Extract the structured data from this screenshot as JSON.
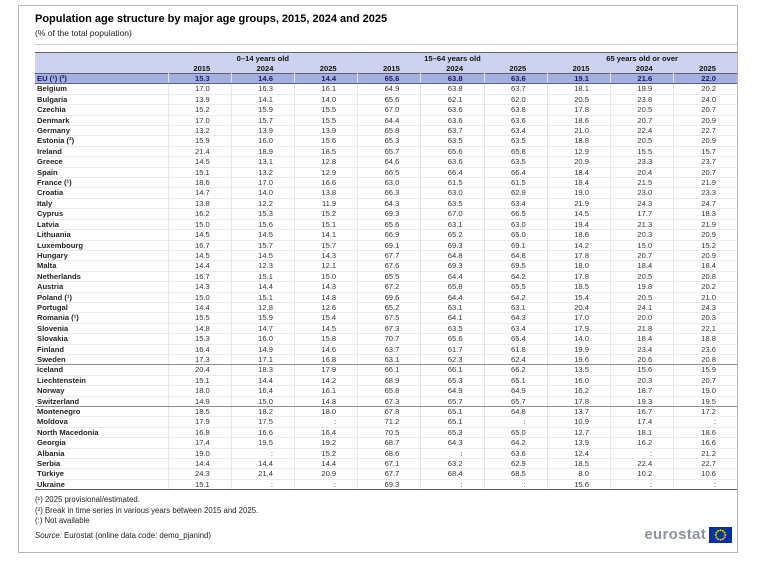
{
  "title": "Population age structure by major age groups, 2015, 2024 and 2025",
  "subtitle": "(% of the total population)",
  "table": {
    "groups": [
      "0–14 years old",
      "15–64 years old",
      "65 years old or over"
    ],
    "years": [
      "2015",
      "2024",
      "2025"
    ],
    "not_available_symbol": ":",
    "rows": [
      {
        "name": "EU (¹) (²)",
        "style": "eu",
        "values": [
          "15.3",
          "14.6",
          "14.4",
          "65.6",
          "63.8",
          "63.6",
          "19.1",
          "21.6",
          "22.0"
        ]
      },
      {
        "name": "Belgium",
        "values": [
          "17.0",
          "16.3",
          "16.1",
          "64.9",
          "63.8",
          "63.7",
          "18.1",
          "19.9",
          "20.2"
        ]
      },
      {
        "name": "Bulgaria",
        "values": [
          "13.9",
          "14.1",
          "14.0",
          "65.6",
          "62.1",
          "62.0",
          "20.5",
          "23.8",
          "24.0"
        ]
      },
      {
        "name": "Czechia",
        "values": [
          "15.2",
          "15.9",
          "15.5",
          "67.0",
          "63.6",
          "63.8",
          "17.8",
          "20.5",
          "20.7"
        ]
      },
      {
        "name": "Denmark",
        "values": [
          "17.0",
          "15.7",
          "15.5",
          "64.4",
          "63.6",
          "63.6",
          "18.6",
          "20.7",
          "20.9"
        ]
      },
      {
        "name": "Germany",
        "values": [
          "13.2",
          "13.9",
          "13.9",
          "65.8",
          "63.7",
          "63.4",
          "21.0",
          "22.4",
          "22.7"
        ]
      },
      {
        "name": "Estonia (²)",
        "values": [
          "15.9",
          "16.0",
          "15.6",
          "65.3",
          "63.5",
          "63.5",
          "18.8",
          "20.5",
          "20.9"
        ]
      },
      {
        "name": "Ireland",
        "values": [
          "21.4",
          "18.9",
          "18.5",
          "65.7",
          "65.6",
          "65.8",
          "12.9",
          "15.5",
          "15.7"
        ]
      },
      {
        "name": "Greece",
        "values": [
          "14.5",
          "13.1",
          "12.8",
          "64.6",
          "63.6",
          "63.5",
          "20.9",
          "23.3",
          "23.7"
        ]
      },
      {
        "name": "Spain",
        "values": [
          "15.1",
          "13.2",
          "12.9",
          "66.5",
          "66.4",
          "66.4",
          "18.4",
          "20.4",
          "20.7"
        ]
      },
      {
        "name": "France (¹)",
        "values": [
          "18.6",
          "17.0",
          "16.6",
          "63.0",
          "61.5",
          "61.5",
          "18.4",
          "21.5",
          "21.9"
        ]
      },
      {
        "name": "Croatia",
        "values": [
          "14.7",
          "14.0",
          "13.8",
          "66.3",
          "63.0",
          "62.9",
          "19.0",
          "23.0",
          "23.3"
        ]
      },
      {
        "name": "Italy",
        "values": [
          "13.8",
          "12.2",
          "11.9",
          "64.3",
          "63.5",
          "63.4",
          "21.9",
          "24.3",
          "24.7"
        ]
      },
      {
        "name": "Cyprus",
        "values": [
          "16.2",
          "15.3",
          "15.2",
          "69.3",
          "67.0",
          "66.5",
          "14.5",
          "17.7",
          "18.3"
        ]
      },
      {
        "name": "Latvia",
        "values": [
          "15.0",
          "15.6",
          "15.1",
          "65.6",
          "63.1",
          "63.0",
          "19.4",
          "21.3",
          "21.9"
        ]
      },
      {
        "name": "Lithuania",
        "values": [
          "14.5",
          "14.5",
          "14.1",
          "66.9",
          "65.2",
          "65.0",
          "18.6",
          "20.3",
          "20.9"
        ]
      },
      {
        "name": "Luxembourg",
        "values": [
          "16.7",
          "15.7",
          "15.7",
          "69.1",
          "69.3",
          "69.1",
          "14.2",
          "15.0",
          "15.2"
        ]
      },
      {
        "name": "Hungary",
        "values": [
          "14.5",
          "14.5",
          "14.3",
          "67.7",
          "64.8",
          "64.8",
          "17.8",
          "20.7",
          "20.9"
        ]
      },
      {
        "name": "Malta",
        "values": [
          "14.4",
          "12.3",
          "12.1",
          "67.6",
          "69.3",
          "69.5",
          "18.0",
          "18.4",
          "18.4"
        ]
      },
      {
        "name": "Netherlands",
        "values": [
          "16.7",
          "15.1",
          "15.0",
          "65.5",
          "64.4",
          "64.2",
          "17.8",
          "20.5",
          "20.8"
        ]
      },
      {
        "name": "Austria",
        "values": [
          "14.3",
          "14.4",
          "14.3",
          "67.2",
          "65.8",
          "65.5",
          "18.5",
          "19.8",
          "20.2"
        ]
      },
      {
        "name": "Poland (¹)",
        "values": [
          "15.0",
          "15.1",
          "14.8",
          "69.6",
          "64.4",
          "64.2",
          "15.4",
          "20.5",
          "21.0"
        ]
      },
      {
        "name": "Portugal",
        "values": [
          "14.4",
          "12.8",
          "12.6",
          "65.2",
          "63.1",
          "63.1",
          "20.4",
          "24.1",
          "24.3"
        ]
      },
      {
        "name": "Romania (¹)",
        "values": [
          "15.5",
          "15.9",
          "15.4",
          "67.5",
          "64.1",
          "64.3",
          "17.0",
          "20.0",
          "20.3"
        ]
      },
      {
        "name": "Slovenia",
        "values": [
          "14.8",
          "14.7",
          "14.5",
          "67.3",
          "63.5",
          "63.4",
          "17.9",
          "21.8",
          "22.1"
        ]
      },
      {
        "name": "Slovakia",
        "values": [
          "15.3",
          "16.0",
          "15.8",
          "70.7",
          "65.6",
          "65.4",
          "14.0",
          "18.4",
          "18.8"
        ]
      },
      {
        "name": "Finland",
        "values": [
          "16.4",
          "14.9",
          "14.6",
          "63.7",
          "61.7",
          "61.8",
          "19.9",
          "23.4",
          "23.6"
        ]
      },
      {
        "name": "Sweden",
        "divider_after": true,
        "values": [
          "17.3",
          "17.1",
          "16.8",
          "63.1",
          "62.3",
          "62.4",
          "19.6",
          "20.6",
          "20.8"
        ]
      },
      {
        "name": "Iceland",
        "values": [
          "20.4",
          "18.3",
          "17.9",
          "66.1",
          "66.1",
          "66.2",
          "13.5",
          "15.6",
          "15.9"
        ]
      },
      {
        "name": "Liechtenstein",
        "values": [
          "15.1",
          "14.4",
          "14.2",
          "68.9",
          "65.3",
          "65.1",
          "16.0",
          "20.3",
          "20.7"
        ]
      },
      {
        "name": "Norway",
        "values": [
          "18.0",
          "16.4",
          "16.1",
          "65.8",
          "64.9",
          "64.9",
          "16.2",
          "18.7",
          "19.0"
        ]
      },
      {
        "name": "Switzerland",
        "divider_after": true,
        "values": [
          "14.9",
          "15.0",
          "14.8",
          "67.3",
          "65.7",
          "65.7",
          "17.8",
          "19.3",
          "19.5"
        ]
      },
      {
        "name": "Montenegro",
        "values": [
          "18.5",
          "18.2",
          "18.0",
          "67.8",
          "65.1",
          "64.8",
          "13.7",
          "16.7",
          "17.2"
        ]
      },
      {
        "name": "Moldova",
        "values": [
          "17.9",
          "17.5",
          ":",
          "71.2",
          "65.1",
          ":",
          "10.9",
          "17.4",
          ":"
        ]
      },
      {
        "name": "North Macedonia",
        "values": [
          "16.8",
          "16.6",
          "16.4",
          "70.5",
          "65.3",
          "65.0",
          "12.7",
          "18.1",
          "18.6"
        ]
      },
      {
        "name": "Georgia",
        "values": [
          "17.4",
          "19.5",
          "19.2",
          "68.7",
          "64.3",
          "64.2",
          "13.9",
          "16.2",
          "16.6"
        ]
      },
      {
        "name": "Albania",
        "values": [
          "19.0",
          ":",
          "15.2",
          "68.6",
          ":",
          "63.6",
          "12.4",
          ":",
          "21.2"
        ]
      },
      {
        "name": "Serbia",
        "values": [
          "14.4",
          "14.4",
          "14.4",
          "67.1",
          "63.2",
          "62.9",
          "18.5",
          "22.4",
          "22.7"
        ]
      },
      {
        "name": "Türkiye",
        "values": [
          "24.3",
          "21.4",
          "20.9",
          "67.7",
          "68.4",
          "68.5",
          "8.0",
          "10.2",
          "10.6"
        ]
      },
      {
        "name": "Ukraine",
        "values": [
          "15.1",
          ":",
          ":",
          "69.3",
          ":",
          ":",
          "15.6",
          ":",
          ":"
        ]
      }
    ]
  },
  "footnotes": [
    "(¹) 2025 provisional/estimated.",
    "(²) Break in time series in various years between 2015 and 2025.",
    "(:) Not available"
  ],
  "source": {
    "label": "Source:",
    "text": " Eurostat (online data code: demo_pjanind)"
  },
  "logo": {
    "text": "eurostat"
  },
  "colors": {
    "header_bg": "#cdd3ee",
    "eu_row_bg": "#a6b0e0",
    "eu_row_text": "#1a1a60",
    "logo_blue": "#003399",
    "logo_star_yellow": "#ffcc00",
    "logo_text_gray": "#8d939c"
  }
}
